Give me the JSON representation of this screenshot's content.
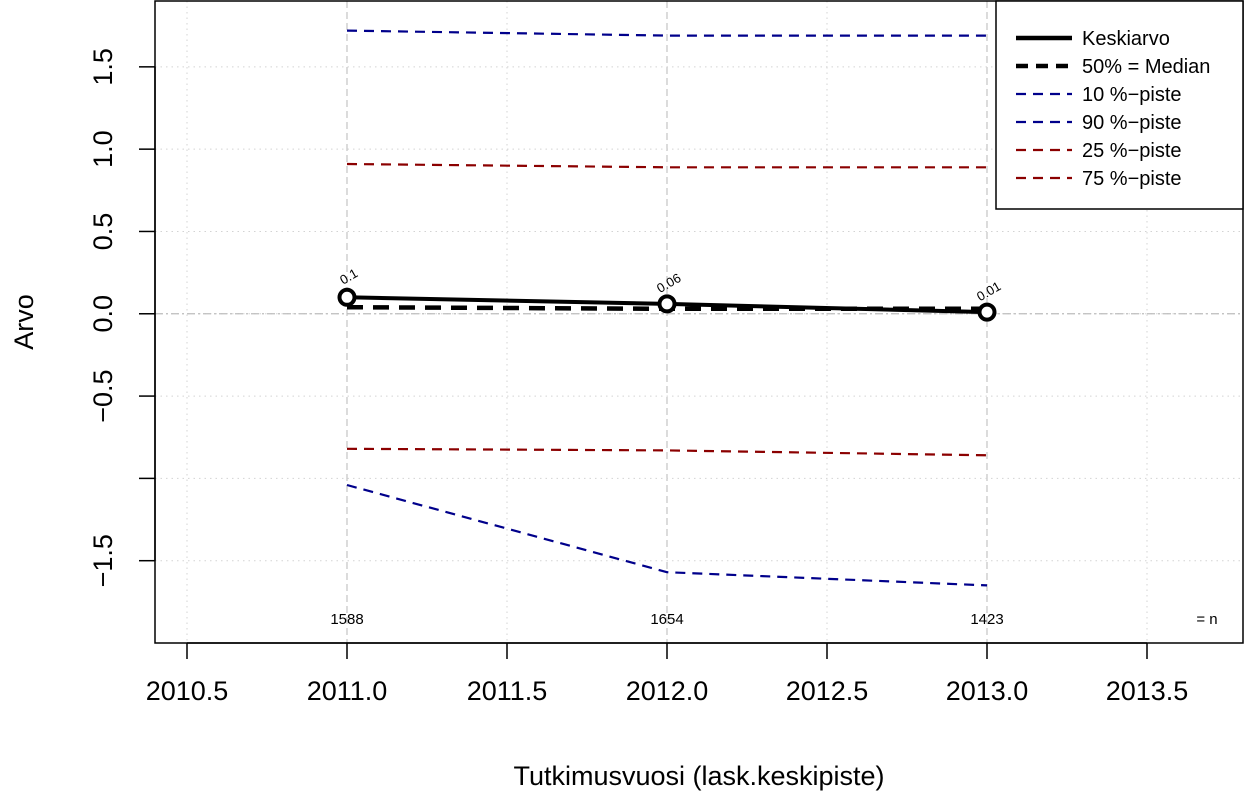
{
  "chart_data": {
    "type": "line",
    "xlabel": "Tutkimusvuosi (lask.keskipiste)",
    "ylabel": "Arvo",
    "xlim": [
      2010.4,
      2013.8
    ],
    "ylim": [
      -2.0,
      1.9
    ],
    "x_ticks": [
      2010.5,
      2011.0,
      2011.5,
      2012.0,
      2012.5,
      2013.0,
      2013.5
    ],
    "x_tick_labels": [
      "2010.5",
      "2011.0",
      "2011.5",
      "2012.0",
      "2012.5",
      "2013.0",
      "2013.5"
    ],
    "y_ticks": [
      -1.5,
      -1.0,
      -0.5,
      0.0,
      0.5,
      1.0,
      1.5
    ],
    "y_tick_labels": [
      "−1.5",
      "",
      "−0.5",
      "0.0",
      "0.5",
      "1.0",
      "1.5"
    ],
    "grid": true,
    "legend_position": "top-right",
    "x": [
      2011,
      2012,
      2013
    ],
    "series": [
      {
        "name": "Keskiarvo",
        "values": [
          0.1,
          0.06,
          0.01
        ],
        "color": "#000000",
        "style": "solid-thick",
        "point_labels": [
          "0.1",
          "0.06",
          "0.01"
        ]
      },
      {
        "name": "50% = Median",
        "values": [
          0.04,
          0.03,
          0.03
        ],
        "color": "#000000",
        "style": "dashed-thick"
      },
      {
        "name": "10 %−piste",
        "values": [
          -1.04,
          -1.57,
          -1.65
        ],
        "color": "#00008b",
        "style": "dashed"
      },
      {
        "name": "90 %−piste",
        "values": [
          1.72,
          1.69,
          1.69
        ],
        "color": "#00008b",
        "style": "dashed"
      },
      {
        "name": "25 %−piste",
        "values": [
          -0.82,
          -0.83,
          -0.86
        ],
        "color": "#8b0000",
        "style": "dashed"
      },
      {
        "name": "75 %−piste",
        "values": [
          0.91,
          0.89,
          0.89
        ],
        "color": "#8b0000",
        "style": "dashed"
      }
    ],
    "n_values": [
      "1588",
      "1654",
      "1423"
    ],
    "n_label": "= n"
  }
}
